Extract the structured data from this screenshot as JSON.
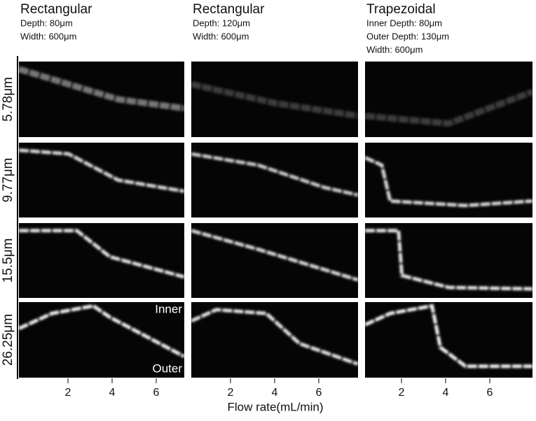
{
  "columns": [
    {
      "title": "Rectangular",
      "details": [
        "Depth: 80μm",
        "Width: 600μm"
      ]
    },
    {
      "title": "Rectangular",
      "details": [
        "Depth: 120μm",
        "Width: 600μm"
      ]
    },
    {
      "title": "Trapezoidal",
      "details": [
        "Inner Depth: 80μm",
        "Outer Depth: 130μm",
        "Width: 600μm"
      ]
    }
  ],
  "rows": [
    "5.78μm",
    "9.77μm",
    "15.5μm",
    "26.25μm"
  ],
  "annotations": {
    "inner": "Inner",
    "outer": "Outer"
  },
  "x_axis": {
    "label": "Flow rate(mL/min)",
    "ticks": [
      2,
      4,
      6
    ]
  }
}
